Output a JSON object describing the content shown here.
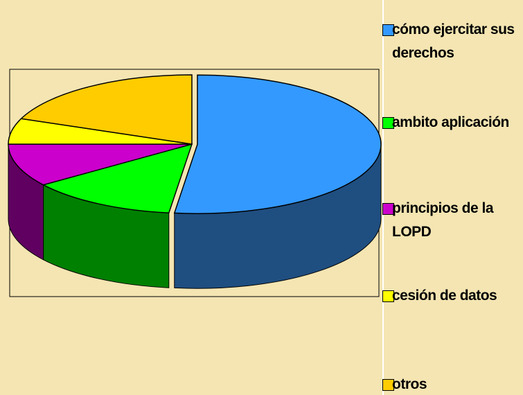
{
  "chart_data": {
    "type": "pie3d",
    "categories": [
      "cómo ejercitar sus derechos",
      "ambito aplicación",
      "principios de la LOPD",
      "cesión de datos",
      "otros"
    ],
    "values": [
      52,
      13,
      10,
      6,
      19
    ],
    "colors": [
      "#3399ff",
      "#00ff00",
      "#cc00cc",
      "#ffff00",
      "#ffcc00"
    ],
    "side_colors": [
      "#1f4e80",
      "#008000",
      "#600060",
      "#808000",
      "#806600"
    ],
    "legend": "right"
  }
}
